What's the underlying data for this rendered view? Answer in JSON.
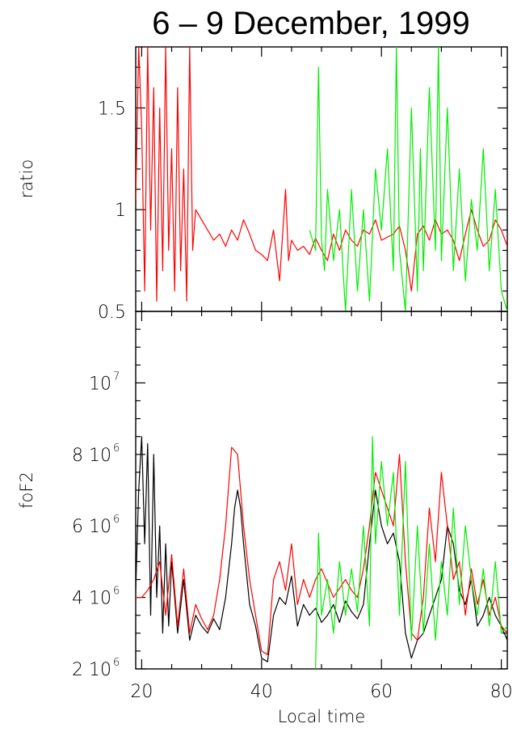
{
  "title": "6 – 9 December, 1999",
  "colors": {
    "red": "#ff0000",
    "green": "#00ee00",
    "black": "#000000"
  },
  "chart_data": [
    {
      "type": "line",
      "panel": "top",
      "ylabel": "ratio",
      "xlim": [
        19,
        81
      ],
      "ylim": [
        0.5,
        1.8
      ],
      "ytick_labels": [
        {
          "value": 0.5,
          "label": "0.5"
        },
        {
          "value": 1.0,
          "label": "1"
        },
        {
          "value": 1.5,
          "label": "1.5"
        }
      ],
      "series": [
        {
          "color": "#ff0000",
          "x": [
            19.0,
            19.5,
            20.0,
            20.5,
            21.0,
            21.5,
            22.0,
            22.5,
            23.0,
            23.5,
            24.0,
            24.5,
            25.0,
            25.5,
            26.0,
            26.5,
            27.0,
            27.5,
            28.0,
            28.5,
            29.0,
            30.0,
            31.0,
            32.0,
            33.0,
            34.0,
            35.0,
            36.0,
            37.0,
            38.0,
            39.0,
            40.0,
            41.0,
            42.0,
            43.0,
            44.0,
            44.5,
            45.0,
            46.0,
            47.0,
            48.0,
            49.0,
            50.0,
            51.0,
            52.0,
            53.0,
            54.0,
            55.0,
            56.0,
            57.0,
            58.0,
            59.0,
            60.0,
            62.0,
            63.0,
            64.0,
            65.0,
            66.0,
            67.0,
            68.0,
            69.0,
            70.0,
            71.0,
            72.0,
            73.0,
            74.0,
            75.0,
            76.0,
            77.0,
            78.0,
            79.0,
            80.0,
            81.0
          ],
          "y": [
            1.05,
            1.8,
            1.4,
            0.6,
            1.8,
            0.9,
            1.6,
            0.55,
            1.5,
            0.7,
            1.8,
            0.8,
            1.3,
            0.6,
            1.6,
            0.7,
            1.2,
            0.55,
            1.8,
            0.8,
            1.0,
            0.95,
            0.9,
            0.85,
            0.88,
            0.82,
            0.9,
            0.85,
            0.95,
            0.88,
            0.8,
            0.78,
            0.75,
            0.9,
            0.65,
            1.1,
            0.75,
            0.85,
            0.8,
            0.82,
            0.78,
            0.86,
            0.8,
            0.75,
            0.88,
            0.8,
            0.9,
            0.85,
            0.82,
            0.9,
            0.88,
            0.95,
            0.85,
            0.88,
            0.92,
            0.8,
            0.6,
            0.88,
            0.92,
            0.85,
            0.95,
            0.88,
            0.9,
            0.85,
            0.75,
            0.88,
            1.0,
            0.9,
            0.82,
            0.85,
            0.95,
            0.9,
            0.82
          ]
        },
        {
          "color": "#00ee00",
          "x": [
            48.0,
            49.0,
            49.5,
            50.0,
            50.5,
            51.0,
            52.0,
            53.0,
            54.0,
            55.0,
            56.0,
            57.0,
            58.0,
            59.0,
            60.0,
            61.0,
            62.0,
            62.5,
            63.0,
            64.0,
            65.0,
            66.0,
            66.5,
            67.0,
            68.0,
            69.0,
            69.5,
            70.0,
            71.0,
            72.0,
            73.0,
            74.0,
            75.0,
            76.0,
            77.0,
            78.0,
            79.0,
            80.0,
            81.0
          ],
          "y": [
            0.9,
            0.8,
            1.7,
            0.85,
            0.7,
            1.1,
            0.75,
            1.0,
            0.5,
            1.1,
            0.6,
            1.0,
            0.55,
            1.2,
            0.9,
            1.3,
            0.7,
            1.8,
            0.8,
            0.5,
            1.5,
            0.6,
            1.3,
            0.7,
            1.6,
            0.8,
            1.8,
            0.75,
            1.5,
            0.7,
            1.2,
            0.65,
            1.05,
            0.8,
            1.3,
            0.7,
            1.1,
            0.6,
            0.5
          ]
        }
      ]
    },
    {
      "type": "line",
      "panel": "bottom",
      "ylabel": "foF2",
      "xlabel": "Local time",
      "xlim": [
        19,
        81
      ],
      "ylim": [
        2,
        12
      ],
      "xtick_labels": [
        {
          "value": 20,
          "label": "20"
        },
        {
          "value": 40,
          "label": "40"
        },
        {
          "value": 60,
          "label": "60"
        },
        {
          "value": 80,
          "label": "80"
        }
      ],
      "ytick_labels": [
        {
          "value": 2,
          "label": "2 10",
          "exp": "6"
        },
        {
          "value": 4,
          "label": "4 10",
          "exp": "6"
        },
        {
          "value": 6,
          "label": "6 10",
          "exp": "6"
        },
        {
          "value": 8,
          "label": "8 10",
          "exp": "6"
        },
        {
          "value": 10,
          "label": "10",
          "exp": "7"
        }
      ],
      "series": [
        {
          "color": "#000000",
          "x": [
            19.0,
            19.5,
            20.0,
            20.5,
            21.0,
            21.5,
            22.0,
            22.5,
            23.0,
            23.5,
            24.0,
            24.5,
            25.0,
            26.0,
            27.0,
            28.0,
            29.0,
            30.0,
            31.0,
            32.0,
            33.0,
            34.0,
            35.0,
            35.5,
            36.0,
            36.5,
            37.0,
            38.0,
            39.0,
            40.0,
            41.0,
            42.0,
            43.0,
            44.0,
            45.0,
            46.0,
            47.0,
            48.0,
            49.0,
            50.0,
            51.0,
            52.0,
            53.0,
            54.0,
            55.0,
            56.0,
            57.0,
            58.0,
            59.0,
            60.0,
            61.0,
            62.0,
            63.0,
            64.0,
            65.0,
            66.0,
            67.0,
            68.0,
            69.0,
            70.0,
            71.0,
            72.0,
            73.0,
            74.0,
            75.0,
            76.0,
            77.0,
            78.0,
            79.0,
            80.0,
            81.0
          ],
          "y": [
            4.2,
            7.0,
            8.5,
            5.5,
            8.3,
            3.5,
            8.0,
            4.0,
            6.0,
            3.0,
            5.5,
            3.2,
            5.0,
            3.0,
            4.5,
            2.8,
            3.5,
            3.2,
            3.0,
            3.4,
            3.1,
            4.0,
            5.5,
            6.5,
            7.0,
            6.5,
            5.5,
            3.8,
            3.2,
            2.3,
            2.2,
            3.5,
            4.0,
            3.8,
            4.6,
            3.2,
            3.8,
            3.5,
            3.7,
            3.3,
            3.5,
            3.8,
            3.3,
            3.9,
            3.6,
            3.4,
            3.8,
            5.5,
            7.0,
            6.0,
            5.5,
            5.8,
            5.0,
            3.0,
            2.3,
            2.8,
            3.0,
            3.5,
            4.0,
            4.5,
            6.0,
            5.5,
            4.2,
            3.8,
            4.5,
            3.2,
            3.5,
            4.0,
            3.5,
            3.2,
            2.8
          ]
        },
        {
          "color": "#ff0000",
          "x": [
            19.0,
            20.0,
            21.0,
            22.0,
            23.0,
            24.0,
            25.0,
            26.0,
            27.0,
            28.0,
            29.0,
            30.0,
            31.0,
            32.0,
            33.0,
            34.0,
            35.0,
            36.0,
            37.0,
            38.0,
            39.0,
            40.0,
            41.0,
            42.0,
            43.0,
            44.0,
            45.0,
            46.0,
            47.0,
            48.0,
            49.0,
            50.0,
            52.0,
            54.0,
            55.0,
            56.0,
            57.0,
            58.0,
            59.0,
            62.0,
            63.0,
            64.0,
            65.0,
            66.0,
            67.0,
            68.0,
            69.0,
            70.0,
            71.0,
            72.0,
            73.0,
            74.0,
            75.0,
            76.0,
            77.0,
            78.0,
            79.0,
            80.0,
            81.0
          ],
          "y": [
            4.0,
            4.0,
            4.2,
            4.5,
            5.0,
            3.5,
            5.2,
            3.2,
            4.8,
            3.0,
            3.8,
            3.4,
            3.1,
            3.5,
            4.5,
            6.0,
            8.2,
            8.0,
            6.0,
            4.5,
            3.5,
            2.5,
            2.4,
            4.5,
            5.0,
            4.2,
            5.5,
            3.8,
            4.5,
            4.0,
            4.5,
            4.8,
            4.0,
            4.5,
            4.2,
            4.0,
            4.8,
            6.0,
            7.5,
            6.0,
            8.0,
            5.0,
            3.0,
            2.8,
            4.0,
            6.5,
            5.0,
            7.5,
            6.0,
            4.5,
            5.0,
            3.5,
            4.8,
            3.8,
            4.5,
            3.5,
            4.0,
            3.2,
            3.0
          ]
        },
        {
          "color": "#00ee00",
          "x": [
            49.0,
            49.5,
            50.0,
            51.0,
            52.0,
            53.0,
            54.0,
            55.0,
            56.0,
            57.0,
            58.0,
            58.5,
            59.0,
            60.0,
            61.0,
            62.0,
            63.0,
            64.0,
            65.0,
            66.0,
            67.0,
            68.0,
            69.0,
            70.0,
            71.0,
            72.0,
            73.0,
            74.0,
            75.0,
            76.0,
            77.0,
            78.0,
            79.0,
            80.0,
            81.0
          ],
          "y": [
            2.0,
            5.8,
            3.5,
            4.5,
            3.0,
            5.0,
            3.5,
            4.8,
            3.6,
            6.0,
            3.2,
            8.5,
            5.5,
            7.8,
            6.0,
            7.5,
            3.5,
            7.8,
            2.8,
            6.0,
            3.0,
            5.5,
            2.8,
            5.0,
            3.5,
            6.5,
            3.8,
            6.0,
            4.5,
            3.5,
            4.8,
            3.2,
            5.0,
            3.0,
            3.2
          ]
        }
      ]
    }
  ]
}
